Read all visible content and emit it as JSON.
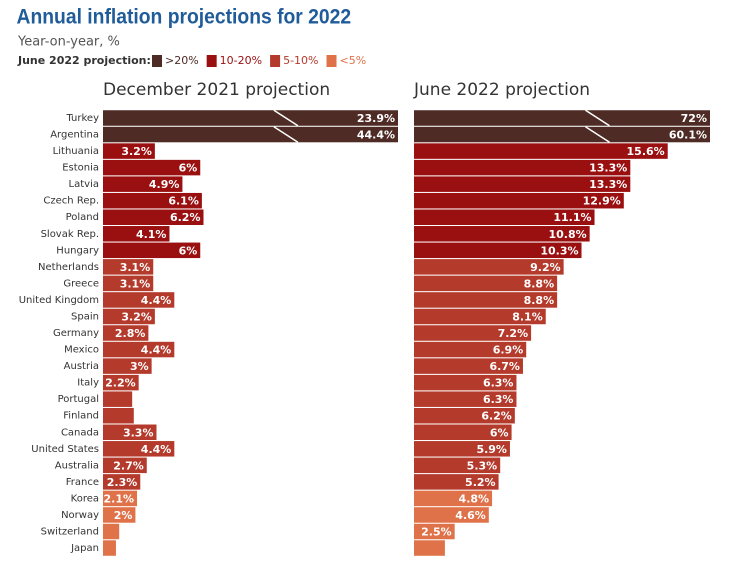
{
  "chart_data": {
    "type": "bar",
    "orientation": "horizontal",
    "title": "Annual inflation projections for 2022",
    "subtitle": "Year-on-year, %",
    "legend_title": "June 2022 projection:",
    "legend": [
      {
        "name": ">20%",
        "color": "#4e2b25"
      },
      {
        "name": "10-20%",
        "color": "#9a0f10"
      },
      {
        "name": "5-10%",
        "color": "#b43a2c"
      },
      {
        "name": "<5%",
        "color": "#e0724a"
      }
    ],
    "categories": [
      "Turkey",
      "Argentina",
      "Lithuania",
      "Estonia",
      "Latvia",
      "Czech Rep.",
      "Poland",
      "Slovak Rep.",
      "Hungary",
      "Netherlands",
      "Greece",
      "United Kingdom",
      "Spain",
      "Germany",
      "Mexico",
      "Austria",
      "Italy",
      "Portugal",
      "Finland",
      "Canada",
      "United States",
      "Australia",
      "France",
      "Korea",
      "Norway",
      "Switzerland",
      "Japan"
    ],
    "colors": [
      "#4e2b25",
      "#4e2b25",
      "#9a0f10",
      "#9a0f10",
      "#9a0f10",
      "#9a0f10",
      "#9a0f10",
      "#9a0f10",
      "#9a0f10",
      "#b43a2c",
      "#b43a2c",
      "#b43a2c",
      "#b43a2c",
      "#b43a2c",
      "#b43a2c",
      "#b43a2c",
      "#b43a2c",
      "#b43a2c",
      "#b43a2c",
      "#b43a2c",
      "#b43a2c",
      "#b43a2c",
      "#b43a2c",
      "#e0724a",
      "#e0724a",
      "#e0724a",
      "#e0724a"
    ],
    "xlim": [
      0,
      18.2
    ],
    "series": [
      {
        "name": "December 2021 projection",
        "values": [
          23.9,
          44.4,
          3.2,
          6,
          4.9,
          6.1,
          6.2,
          4.1,
          6,
          3.1,
          3.1,
          4.4,
          3.2,
          2.8,
          4.4,
          3,
          2.2,
          1.8,
          1.9,
          3.3,
          4.4,
          2.7,
          2.3,
          2.1,
          2,
          1.0,
          0.8
        ],
        "value_labels": [
          "23.9%",
          "44.4%",
          "3.2%",
          "6%",
          "4.9%",
          "6.1%",
          "6.2%",
          "4.1%",
          "6%",
          "3.1%",
          "3.1%",
          "4.4%",
          "3.2%",
          "2.8%",
          "4.4%",
          "3%",
          "2.2%",
          null,
          null,
          "3.3%",
          "4.4%",
          "2.7%",
          "2.3%",
          "2.1%",
          "2%",
          null,
          null
        ]
      },
      {
        "name": "June 2022 projection",
        "values": [
          72,
          60.1,
          15.6,
          13.3,
          13.3,
          12.9,
          11.1,
          10.8,
          10.3,
          9.2,
          8.8,
          8.8,
          8.1,
          7.2,
          6.9,
          6.7,
          6.3,
          6.3,
          6.2,
          6,
          5.9,
          5.3,
          5.2,
          4.8,
          4.6,
          2.5,
          1.9
        ],
        "value_labels": [
          "72%",
          "60.1%",
          "15.6%",
          "13.3%",
          "13.3%",
          "12.9%",
          "11.1%",
          "10.8%",
          "10.3%",
          "9.2%",
          "8.8%",
          "8.8%",
          "8.1%",
          "7.2%",
          "6.9%",
          "6.7%",
          "6.3%",
          "6.3%",
          "6.2%",
          "6%",
          "5.9%",
          "5.3%",
          "5.2%",
          "4.8%",
          "4.6%",
          "2.5%",
          null
        ]
      }
    ]
  }
}
